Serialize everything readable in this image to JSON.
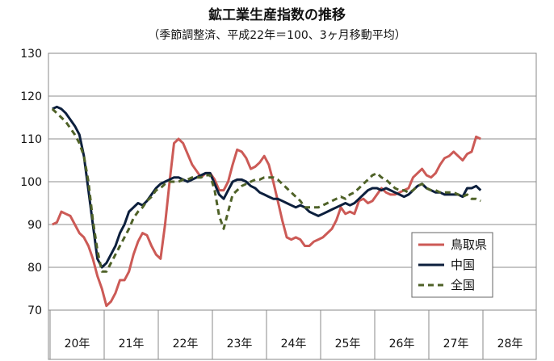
{
  "chart_data": {
    "type": "line",
    "title": "鉱工業生産指数の推移",
    "subtitle": "（季節調整済、平成22年＝100、3ヶ月移動平均）",
    "ylim": [
      70,
      130
    ],
    "yticks": [
      70,
      80,
      90,
      100,
      110,
      120,
      130
    ],
    "year_labels": [
      "20年",
      "21年",
      "22年",
      "23年",
      "24年",
      "25年",
      "26年",
      "27年",
      "28年"
    ],
    "x_unit": "month index (0 = 平成20年1月)",
    "grid": "horizontal",
    "legend_position": "lower-right",
    "series": [
      {
        "name": "鳥取県",
        "color": "#cc5a56",
        "dash": "",
        "points": [
          [
            0,
            90
          ],
          [
            1,
            90.5
          ],
          [
            2,
            93
          ],
          [
            3,
            92.5
          ],
          [
            4,
            92
          ],
          [
            5,
            90
          ],
          [
            6,
            88
          ],
          [
            7,
            87
          ],
          [
            8,
            85
          ],
          [
            9,
            82
          ],
          [
            10,
            78
          ],
          [
            11,
            75
          ],
          [
            12,
            71
          ],
          [
            13,
            72
          ],
          [
            14,
            74
          ],
          [
            15,
            77
          ],
          [
            16,
            77
          ],
          [
            17,
            79
          ],
          [
            18,
            83
          ],
          [
            19,
            86
          ],
          [
            20,
            88
          ],
          [
            21,
            87.5
          ],
          [
            22,
            85
          ],
          [
            23,
            83
          ],
          [
            24,
            82
          ],
          [
            25,
            90
          ],
          [
            26,
            100
          ],
          [
            27,
            109
          ],
          [
            28,
            110
          ],
          [
            29,
            109
          ],
          [
            30,
            106.5
          ],
          [
            31,
            104
          ],
          [
            32,
            102.5
          ],
          [
            33,
            101
          ],
          [
            34,
            102
          ],
          [
            35,
            102
          ],
          [
            36,
            100.5
          ],
          [
            37,
            98
          ],
          [
            38,
            98
          ],
          [
            39,
            100
          ],
          [
            40,
            104
          ],
          [
            41,
            107.5
          ],
          [
            42,
            107
          ],
          [
            43,
            105.5
          ],
          [
            44,
            103
          ],
          [
            45,
            103.5
          ],
          [
            46,
            104.5
          ],
          [
            47,
            106
          ],
          [
            48,
            104
          ],
          [
            49,
            100
          ],
          [
            50,
            95.5
          ],
          [
            51,
            91
          ],
          [
            52,
            87
          ],
          [
            53,
            86.5
          ],
          [
            54,
            87
          ],
          [
            55,
            86.5
          ],
          [
            56,
            85
          ],
          [
            57,
            85
          ],
          [
            58,
            86
          ],
          [
            59,
            86.5
          ],
          [
            60,
            87
          ],
          [
            61,
            88
          ],
          [
            62,
            89
          ],
          [
            63,
            91
          ],
          [
            64,
            94
          ],
          [
            65,
            92.5
          ],
          [
            66,
            93
          ],
          [
            67,
            92.5
          ],
          [
            68,
            95.5
          ],
          [
            69,
            96
          ],
          [
            70,
            95
          ],
          [
            71,
            95.5
          ],
          [
            72,
            97
          ],
          [
            73,
            98.5
          ],
          [
            74,
            97.5
          ],
          [
            75,
            97
          ],
          [
            76,
            97
          ],
          [
            77,
            97.5
          ],
          [
            78,
            98
          ],
          [
            79,
            98.5
          ],
          [
            80,
            101
          ],
          [
            81,
            102
          ],
          [
            82,
            103
          ],
          [
            83,
            101.5
          ],
          [
            84,
            101
          ],
          [
            85,
            102
          ],
          [
            86,
            104
          ],
          [
            87,
            105.5
          ],
          [
            88,
            106
          ],
          [
            89,
            107
          ],
          [
            90,
            106
          ],
          [
            91,
            105
          ],
          [
            92,
            106.5
          ],
          [
            93,
            107
          ],
          [
            94,
            110.5
          ],
          [
            95,
            110
          ]
        ]
      },
      {
        "name": "中国",
        "color": "#0c1f3d",
        "dash": "",
        "points": [
          [
            0,
            117
          ],
          [
            1,
            117.5
          ],
          [
            2,
            117
          ],
          [
            3,
            116
          ],
          [
            4,
            114.5
          ],
          [
            5,
            113
          ],
          [
            6,
            111
          ],
          [
            7,
            106
          ],
          [
            8,
            98
          ],
          [
            9,
            90
          ],
          [
            10,
            82
          ],
          [
            11,
            80
          ],
          [
            12,
            81
          ],
          [
            13,
            83
          ],
          [
            14,
            85
          ],
          [
            15,
            88
          ],
          [
            16,
            90
          ],
          [
            17,
            93
          ],
          [
            18,
            94
          ],
          [
            19,
            95
          ],
          [
            20,
            94.5
          ],
          [
            21,
            95.5
          ],
          [
            22,
            97
          ],
          [
            23,
            98.5
          ],
          [
            24,
            99.5
          ],
          [
            25,
            100
          ],
          [
            26,
            100.5
          ],
          [
            27,
            101
          ],
          [
            28,
            101
          ],
          [
            29,
            100.5
          ],
          [
            30,
            100
          ],
          [
            31,
            100.5
          ],
          [
            32,
            101
          ],
          [
            33,
            101.5
          ],
          [
            34,
            102
          ],
          [
            35,
            102
          ],
          [
            36,
            99.5
          ],
          [
            37,
            97
          ],
          [
            38,
            96
          ],
          [
            39,
            98
          ],
          [
            40,
            100
          ],
          [
            41,
            100.5
          ],
          [
            42,
            100.5
          ],
          [
            43,
            100
          ],
          [
            44,
            99
          ],
          [
            45,
            98.5
          ],
          [
            46,
            97.5
          ],
          [
            47,
            97
          ],
          [
            48,
            96.5
          ],
          [
            49,
            96
          ],
          [
            50,
            96
          ],
          [
            51,
            95.5
          ],
          [
            52,
            95
          ],
          [
            53,
            94.5
          ],
          [
            54,
            94
          ],
          [
            55,
            94.5
          ],
          [
            56,
            94
          ],
          [
            57,
            93
          ],
          [
            58,
            92.5
          ],
          [
            59,
            92
          ],
          [
            60,
            92.5
          ],
          [
            61,
            93
          ],
          [
            62,
            93.5
          ],
          [
            63,
            94
          ],
          [
            64,
            94.5
          ],
          [
            65,
            95
          ],
          [
            66,
            94.5
          ],
          [
            67,
            95
          ],
          [
            68,
            96
          ],
          [
            69,
            97
          ],
          [
            70,
            98
          ],
          [
            71,
            98.5
          ],
          [
            72,
            98.5
          ],
          [
            73,
            98
          ],
          [
            74,
            98.5
          ],
          [
            75,
            98
          ],
          [
            76,
            97.5
          ],
          [
            77,
            97
          ],
          [
            78,
            96.5
          ],
          [
            79,
            97
          ],
          [
            80,
            98
          ],
          [
            81,
            99
          ],
          [
            82,
            99.5
          ],
          [
            83,
            98.5
          ],
          [
            84,
            98
          ],
          [
            85,
            97.5
          ],
          [
            86,
            97.5
          ],
          [
            87,
            97
          ],
          [
            88,
            97
          ],
          [
            89,
            97
          ],
          [
            90,
            97
          ],
          [
            91,
            96.5
          ],
          [
            92,
            98.5
          ],
          [
            93,
            98.5
          ],
          [
            94,
            99
          ],
          [
            95,
            98
          ]
        ]
      },
      {
        "name": "全国",
        "color": "#4f6228",
        "dash": "7,5",
        "points": [
          [
            0,
            117
          ],
          [
            1,
            116
          ],
          [
            2,
            115
          ],
          [
            3,
            114
          ],
          [
            4,
            112.5
          ],
          [
            5,
            111
          ],
          [
            6,
            109
          ],
          [
            7,
            106
          ],
          [
            8,
            100
          ],
          [
            9,
            91
          ],
          [
            10,
            84
          ],
          [
            11,
            79
          ],
          [
            12,
            79
          ],
          [
            13,
            81
          ],
          [
            14,
            83
          ],
          [
            15,
            85
          ],
          [
            16,
            87
          ],
          [
            17,
            89
          ],
          [
            18,
            91.5
          ],
          [
            19,
            93
          ],
          [
            20,
            94
          ],
          [
            21,
            95.5
          ],
          [
            22,
            96.5
          ],
          [
            23,
            98
          ],
          [
            24,
            98.5
          ],
          [
            25,
            99.5
          ],
          [
            26,
            100
          ],
          [
            27,
            100
          ],
          [
            28,
            100
          ],
          [
            29,
            100.5
          ],
          [
            30,
            100.5
          ],
          [
            31,
            101
          ],
          [
            32,
            101
          ],
          [
            33,
            101
          ],
          [
            34,
            101.5
          ],
          [
            35,
            101.5
          ],
          [
            36,
            98
          ],
          [
            37,
            92
          ],
          [
            38,
            89
          ],
          [
            39,
            93
          ],
          [
            40,
            97
          ],
          [
            41,
            98
          ],
          [
            42,
            99
          ],
          [
            43,
            99.5
          ],
          [
            44,
            100
          ],
          [
            45,
            100.5
          ],
          [
            46,
            100.5
          ],
          [
            47,
            101
          ],
          [
            48,
            101
          ],
          [
            49,
            101
          ],
          [
            50,
            100.5
          ],
          [
            51,
            99.5
          ],
          [
            52,
            98.5
          ],
          [
            53,
            97.5
          ],
          [
            54,
            96.5
          ],
          [
            55,
            95.5
          ],
          [
            56,
            94
          ],
          [
            57,
            94
          ],
          [
            58,
            94
          ],
          [
            59,
            94
          ],
          [
            60,
            94.5
          ],
          [
            61,
            95
          ],
          [
            62,
            95.5
          ],
          [
            63,
            96
          ],
          [
            64,
            96.5
          ],
          [
            65,
            96
          ],
          [
            66,
            97
          ],
          [
            67,
            97.5
          ],
          [
            68,
            98.5
          ],
          [
            69,
            99.5
          ],
          [
            70,
            100.5
          ],
          [
            71,
            101.5
          ],
          [
            72,
            102
          ],
          [
            73,
            101
          ],
          [
            74,
            100.5
          ],
          [
            75,
            99.5
          ],
          [
            76,
            98.5
          ],
          [
            77,
            98
          ],
          [
            78,
            98
          ],
          [
            79,
            97.5
          ],
          [
            80,
            98
          ],
          [
            81,
            99
          ],
          [
            82,
            99.5
          ],
          [
            83,
            98.5
          ],
          [
            84,
            98
          ],
          [
            85,
            98
          ],
          [
            86,
            97.5
          ],
          [
            87,
            97.5
          ],
          [
            88,
            97.5
          ],
          [
            89,
            97.5
          ],
          [
            90,
            97
          ],
          [
            91,
            96.5
          ],
          [
            92,
            97
          ],
          [
            93,
            96
          ],
          [
            94,
            96
          ],
          [
            95,
            95.5
          ]
        ]
      }
    ]
  }
}
